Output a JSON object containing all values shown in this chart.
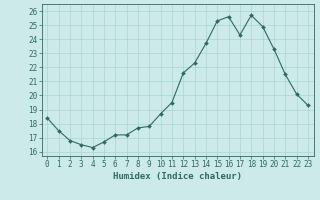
{
  "x": [
    0,
    1,
    2,
    3,
    4,
    5,
    6,
    7,
    8,
    9,
    10,
    11,
    12,
    13,
    14,
    15,
    16,
    17,
    18,
    19,
    20,
    21,
    22,
    23
  ],
  "y": [
    18.4,
    17.5,
    16.8,
    16.5,
    16.3,
    16.7,
    17.2,
    17.2,
    17.7,
    17.8,
    18.7,
    19.5,
    21.6,
    22.3,
    23.7,
    25.3,
    25.6,
    24.3,
    25.7,
    24.9,
    23.3,
    21.5,
    20.1,
    19.3
  ],
  "xlabel": "Humidex (Indice chaleur)",
  "xlim": [
    -0.5,
    23.5
  ],
  "ylim": [
    15.7,
    26.5
  ],
  "yticks": [
    16,
    17,
    18,
    19,
    20,
    21,
    22,
    23,
    24,
    25,
    26
  ],
  "xticks": [
    0,
    1,
    2,
    3,
    4,
    5,
    6,
    7,
    8,
    9,
    10,
    11,
    12,
    13,
    14,
    15,
    16,
    17,
    18,
    19,
    20,
    21,
    22,
    23
  ],
  "line_color": "#2e6b5e",
  "marker_color": "#2e6b5e",
  "bg_color": "#cceaea",
  "grid_color": "#aad4d4",
  "tick_fontsize": 5.5,
  "label_fontsize": 6.5
}
